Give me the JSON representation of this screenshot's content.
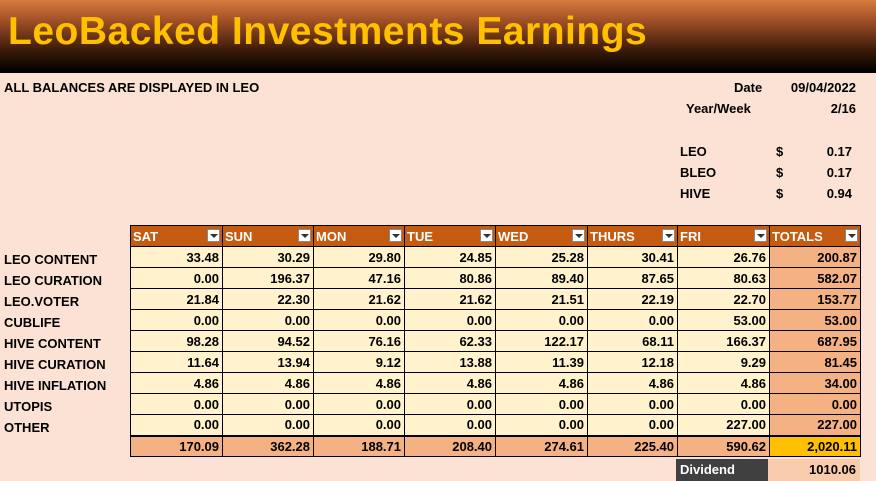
{
  "title": "LeoBacked Investments Earnings",
  "note": "ALL BALANCES ARE DISPLAYED IN LEO",
  "date_label": "Date",
  "date_value": "09/04/2022",
  "week_label": "Year/Week",
  "week_value": "2/16",
  "prices": [
    {
      "name": "LEO",
      "currency": "$",
      "value": "0.17"
    },
    {
      "name": "BLEO",
      "currency": "$",
      "value": "0.17"
    },
    {
      "name": "HIVE",
      "currency": "$",
      "value": "0.94"
    }
  ],
  "columns": [
    "SAT",
    "SUN",
    "MON",
    "TUE",
    "WED",
    "THURS",
    "FRI",
    "TOTALS"
  ],
  "rows": [
    {
      "label": "LEO CONTENT",
      "values": [
        "33.48",
        "30.29",
        "29.80",
        "24.85",
        "25.28",
        "30.41",
        "26.76",
        "200.87"
      ]
    },
    {
      "label": "LEO CURATION",
      "values": [
        "0.00",
        "196.37",
        "47.16",
        "80.86",
        "89.40",
        "87.65",
        "80.63",
        "582.07"
      ]
    },
    {
      "label": "LEO.VOTER",
      "values": [
        "21.84",
        "22.30",
        "21.62",
        "21.62",
        "21.51",
        "22.19",
        "22.70",
        "153.77"
      ]
    },
    {
      "label": "CUBLIFE",
      "values": [
        "0.00",
        "0.00",
        "0.00",
        "0.00",
        "0.00",
        "0.00",
        "53.00",
        "53.00"
      ]
    },
    {
      "label": "HIVE CONTENT",
      "values": [
        "98.28",
        "94.52",
        "76.16",
        "62.33",
        "122.17",
        "68.11",
        "166.37",
        "687.95"
      ]
    },
    {
      "label": "HIVE CURATION",
      "values": [
        "11.64",
        "13.94",
        "9.12",
        "13.88",
        "11.39",
        "12.18",
        "9.29",
        "81.45"
      ]
    },
    {
      "label": "HIVE INFLATION",
      "values": [
        "4.86",
        "4.86",
        "4.86",
        "4.86",
        "4.86",
        "4.86",
        "4.86",
        "34.00"
      ]
    },
    {
      "label": "UTOPIS",
      "values": [
        "0.00",
        "0.00",
        "0.00",
        "0.00",
        "0.00",
        "0.00",
        "0.00",
        "0.00"
      ]
    },
    {
      "label": "OTHER",
      "values": [
        "0.00",
        "0.00",
        "0.00",
        "0.00",
        "0.00",
        "0.00",
        "227.00",
        "227.00"
      ]
    }
  ],
  "totals": [
    "170.09",
    "362.28",
    "188.71",
    "208.40",
    "274.61",
    "225.40",
    "590.62",
    "2,020.11"
  ],
  "dividend_label": "Dividend",
  "dividend_value": "1010.06"
}
